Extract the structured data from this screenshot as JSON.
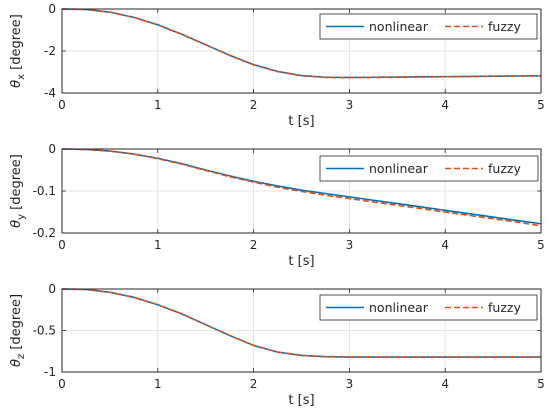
{
  "chart_data": [
    {
      "type": "line",
      "xlabel": "t [s]",
      "ylabel_symbol": "θ",
      "ylabel_sub": "x",
      "ylabel_unit": "[degree]",
      "xlim": [
        0,
        5
      ],
      "ylim": [
        -4,
        0
      ],
      "xticks": [
        "0",
        "1",
        "2",
        "3",
        "4",
        "5"
      ],
      "yticks": [
        "0",
        "-2",
        "-4"
      ],
      "ytick_values": [
        0,
        -2,
        -4
      ],
      "grid": true,
      "legend_position": "top-right",
      "series": [
        {
          "name": "nonlinear",
          "color": "#0072BD",
          "style": "solid",
          "x": [
            0,
            0.25,
            0.5,
            0.75,
            1.0,
            1.25,
            1.5,
            1.75,
            2.0,
            2.25,
            2.5,
            2.75,
            3.0,
            3.25,
            3.5,
            3.75,
            4.0,
            4.25,
            4.5,
            4.75,
            5.0
          ],
          "y": [
            0,
            -0.02,
            -0.15,
            -0.4,
            -0.75,
            -1.2,
            -1.7,
            -2.2,
            -2.65,
            -2.97,
            -3.17,
            -3.25,
            -3.26,
            -3.25,
            -3.24,
            -3.23,
            -3.22,
            -3.21,
            -3.2,
            -3.19,
            -3.18
          ]
        },
        {
          "name": "fuzzy",
          "color": "#D95319",
          "style": "dashed",
          "x": [
            0,
            0.25,
            0.5,
            0.75,
            1.0,
            1.25,
            1.5,
            1.75,
            2.0,
            2.25,
            2.5,
            2.75,
            3.0,
            3.25,
            3.5,
            3.75,
            4.0,
            4.25,
            4.5,
            4.75,
            5.0
          ],
          "y": [
            0,
            -0.02,
            -0.15,
            -0.4,
            -0.76,
            -1.21,
            -1.71,
            -2.21,
            -2.66,
            -2.98,
            -3.18,
            -3.26,
            -3.27,
            -3.26,
            -3.25,
            -3.24,
            -3.23,
            -3.22,
            -3.2,
            -3.19,
            -3.18
          ]
        }
      ]
    },
    {
      "type": "line",
      "xlabel": "t [s]",
      "ylabel_symbol": "θ",
      "ylabel_sub": "y",
      "ylabel_unit": "[degree]",
      "xlim": [
        0,
        5
      ],
      "ylim": [
        -0.2,
        0
      ],
      "xticks": [
        "0",
        "1",
        "2",
        "3",
        "4",
        "5"
      ],
      "yticks": [
        "0",
        "-0.1",
        "-0.2"
      ],
      "ytick_values": [
        0,
        -0.1,
        -0.2
      ],
      "grid": true,
      "legend_position": "top-right",
      "series": [
        {
          "name": "nonlinear",
          "color": "#0072BD",
          "style": "solid",
          "x": [
            0,
            0.25,
            0.5,
            0.75,
            1.0,
            1.25,
            1.5,
            1.75,
            2.0,
            2.25,
            2.5,
            2.75,
            3.0,
            3.25,
            3.5,
            3.75,
            4.0,
            4.25,
            4.5,
            4.75,
            5.0
          ],
          "y": [
            0,
            -0.001,
            -0.005,
            -0.012,
            -0.022,
            -0.035,
            -0.05,
            -0.064,
            -0.077,
            -0.088,
            -0.098,
            -0.106,
            -0.114,
            -0.122,
            -0.13,
            -0.138,
            -0.146,
            -0.154,
            -0.162,
            -0.17,
            -0.178
          ]
        },
        {
          "name": "fuzzy",
          "color": "#D95319",
          "style": "dashed",
          "x": [
            0,
            0.25,
            0.5,
            0.75,
            1.0,
            1.25,
            1.5,
            1.75,
            2.0,
            2.25,
            2.5,
            2.75,
            3.0,
            3.25,
            3.5,
            3.75,
            4.0,
            4.25,
            4.5,
            4.75,
            5.0
          ],
          "y": [
            0,
            -0.001,
            -0.005,
            -0.012,
            -0.023,
            -0.036,
            -0.051,
            -0.066,
            -0.079,
            -0.091,
            -0.101,
            -0.11,
            -0.118,
            -0.126,
            -0.134,
            -0.142,
            -0.15,
            -0.158,
            -0.166,
            -0.174,
            -0.183
          ]
        }
      ]
    },
    {
      "type": "line",
      "xlabel": "t [s]",
      "ylabel_symbol": "θ",
      "ylabel_sub": "z",
      "ylabel_unit": "[degree]",
      "xlim": [
        0,
        5
      ],
      "ylim": [
        -1,
        0
      ],
      "xticks": [
        "0",
        "1",
        "2",
        "3",
        "4",
        "5"
      ],
      "yticks": [
        "0",
        "-0.5",
        "-1"
      ],
      "ytick_values": [
        0,
        -0.5,
        -1
      ],
      "grid": true,
      "legend_position": "top-right",
      "series": [
        {
          "name": "nonlinear",
          "color": "#0072BD",
          "style": "solid",
          "x": [
            0,
            0.25,
            0.5,
            0.75,
            1.0,
            1.25,
            1.5,
            1.75,
            2.0,
            2.25,
            2.5,
            2.75,
            3.0,
            3.25,
            3.5,
            3.75,
            4.0,
            4.25,
            4.5,
            4.75,
            5.0
          ],
          "y": [
            0,
            -0.005,
            -0.04,
            -0.1,
            -0.19,
            -0.3,
            -0.43,
            -0.56,
            -0.68,
            -0.76,
            -0.8,
            -0.815,
            -0.82,
            -0.82,
            -0.82,
            -0.82,
            -0.82,
            -0.82,
            -0.82,
            -0.82,
            -0.82
          ]
        },
        {
          "name": "fuzzy",
          "color": "#D95319",
          "style": "dashed",
          "x": [
            0,
            0.25,
            0.5,
            0.75,
            1.0,
            1.25,
            1.5,
            1.75,
            2.0,
            2.25,
            2.5,
            2.75,
            3.0,
            3.25,
            3.5,
            3.75,
            4.0,
            4.25,
            4.5,
            4.75,
            5.0
          ],
          "y": [
            0,
            -0.005,
            -0.04,
            -0.1,
            -0.19,
            -0.3,
            -0.43,
            -0.56,
            -0.68,
            -0.76,
            -0.8,
            -0.815,
            -0.82,
            -0.82,
            -0.82,
            -0.82,
            -0.82,
            -0.82,
            -0.82,
            -0.82,
            -0.82
          ]
        }
      ]
    }
  ]
}
